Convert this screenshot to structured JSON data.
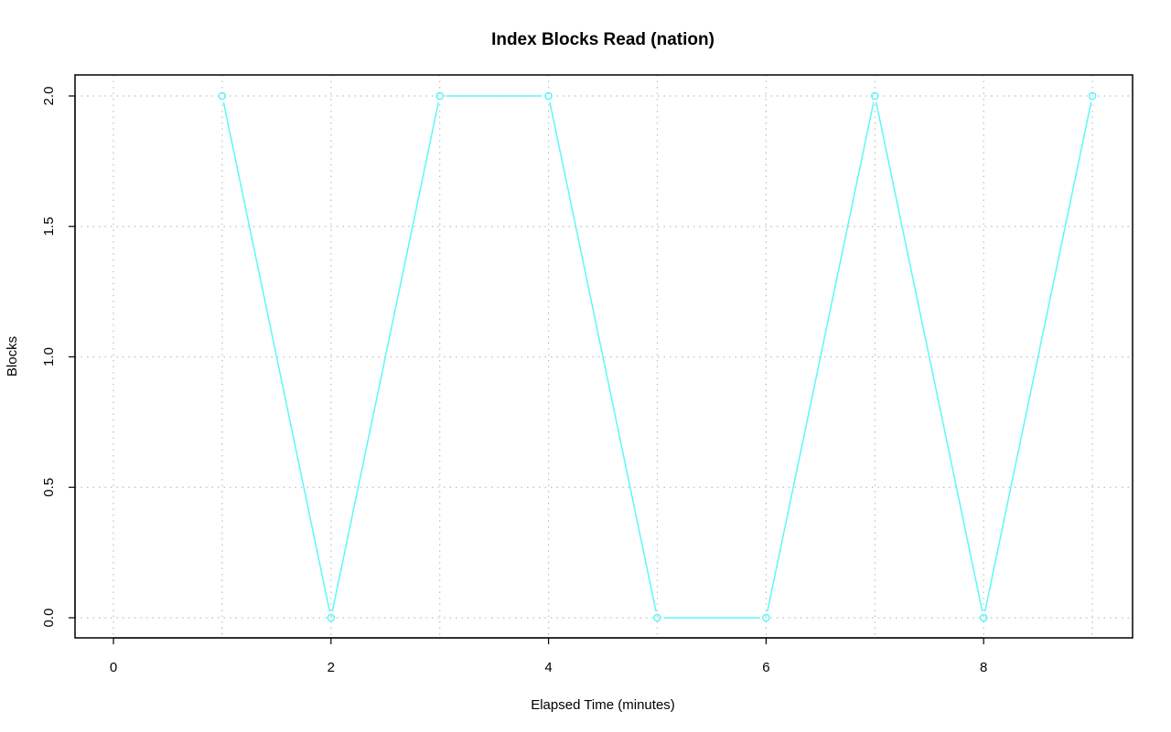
{
  "chart_data": {
    "type": "line",
    "title": "Index Blocks Read (nation)",
    "xlabel": "Elapsed Time (minutes)",
    "ylabel": "Blocks",
    "xlim": [
      0,
      9
    ],
    "ylim": [
      0,
      2
    ],
    "xticks": [
      0,
      2,
      4,
      6,
      8
    ],
    "xtick_labels": [
      "0",
      "2",
      "4",
      "6",
      "8"
    ],
    "yticks": [
      0,
      0.5,
      1,
      1.5,
      2
    ],
    "ytick_labels": [
      "0.0",
      "0.5",
      "1.0",
      "1.5",
      "2.0"
    ],
    "grid": true,
    "series": [
      {
        "x": [
          1,
          2,
          3,
          4,
          5,
          6,
          7,
          8,
          9
        ],
        "y": [
          2,
          0,
          2,
          2,
          0,
          0,
          2,
          0,
          2
        ],
        "color": "#5ff7f7",
        "marker": "open-circle"
      }
    ]
  }
}
